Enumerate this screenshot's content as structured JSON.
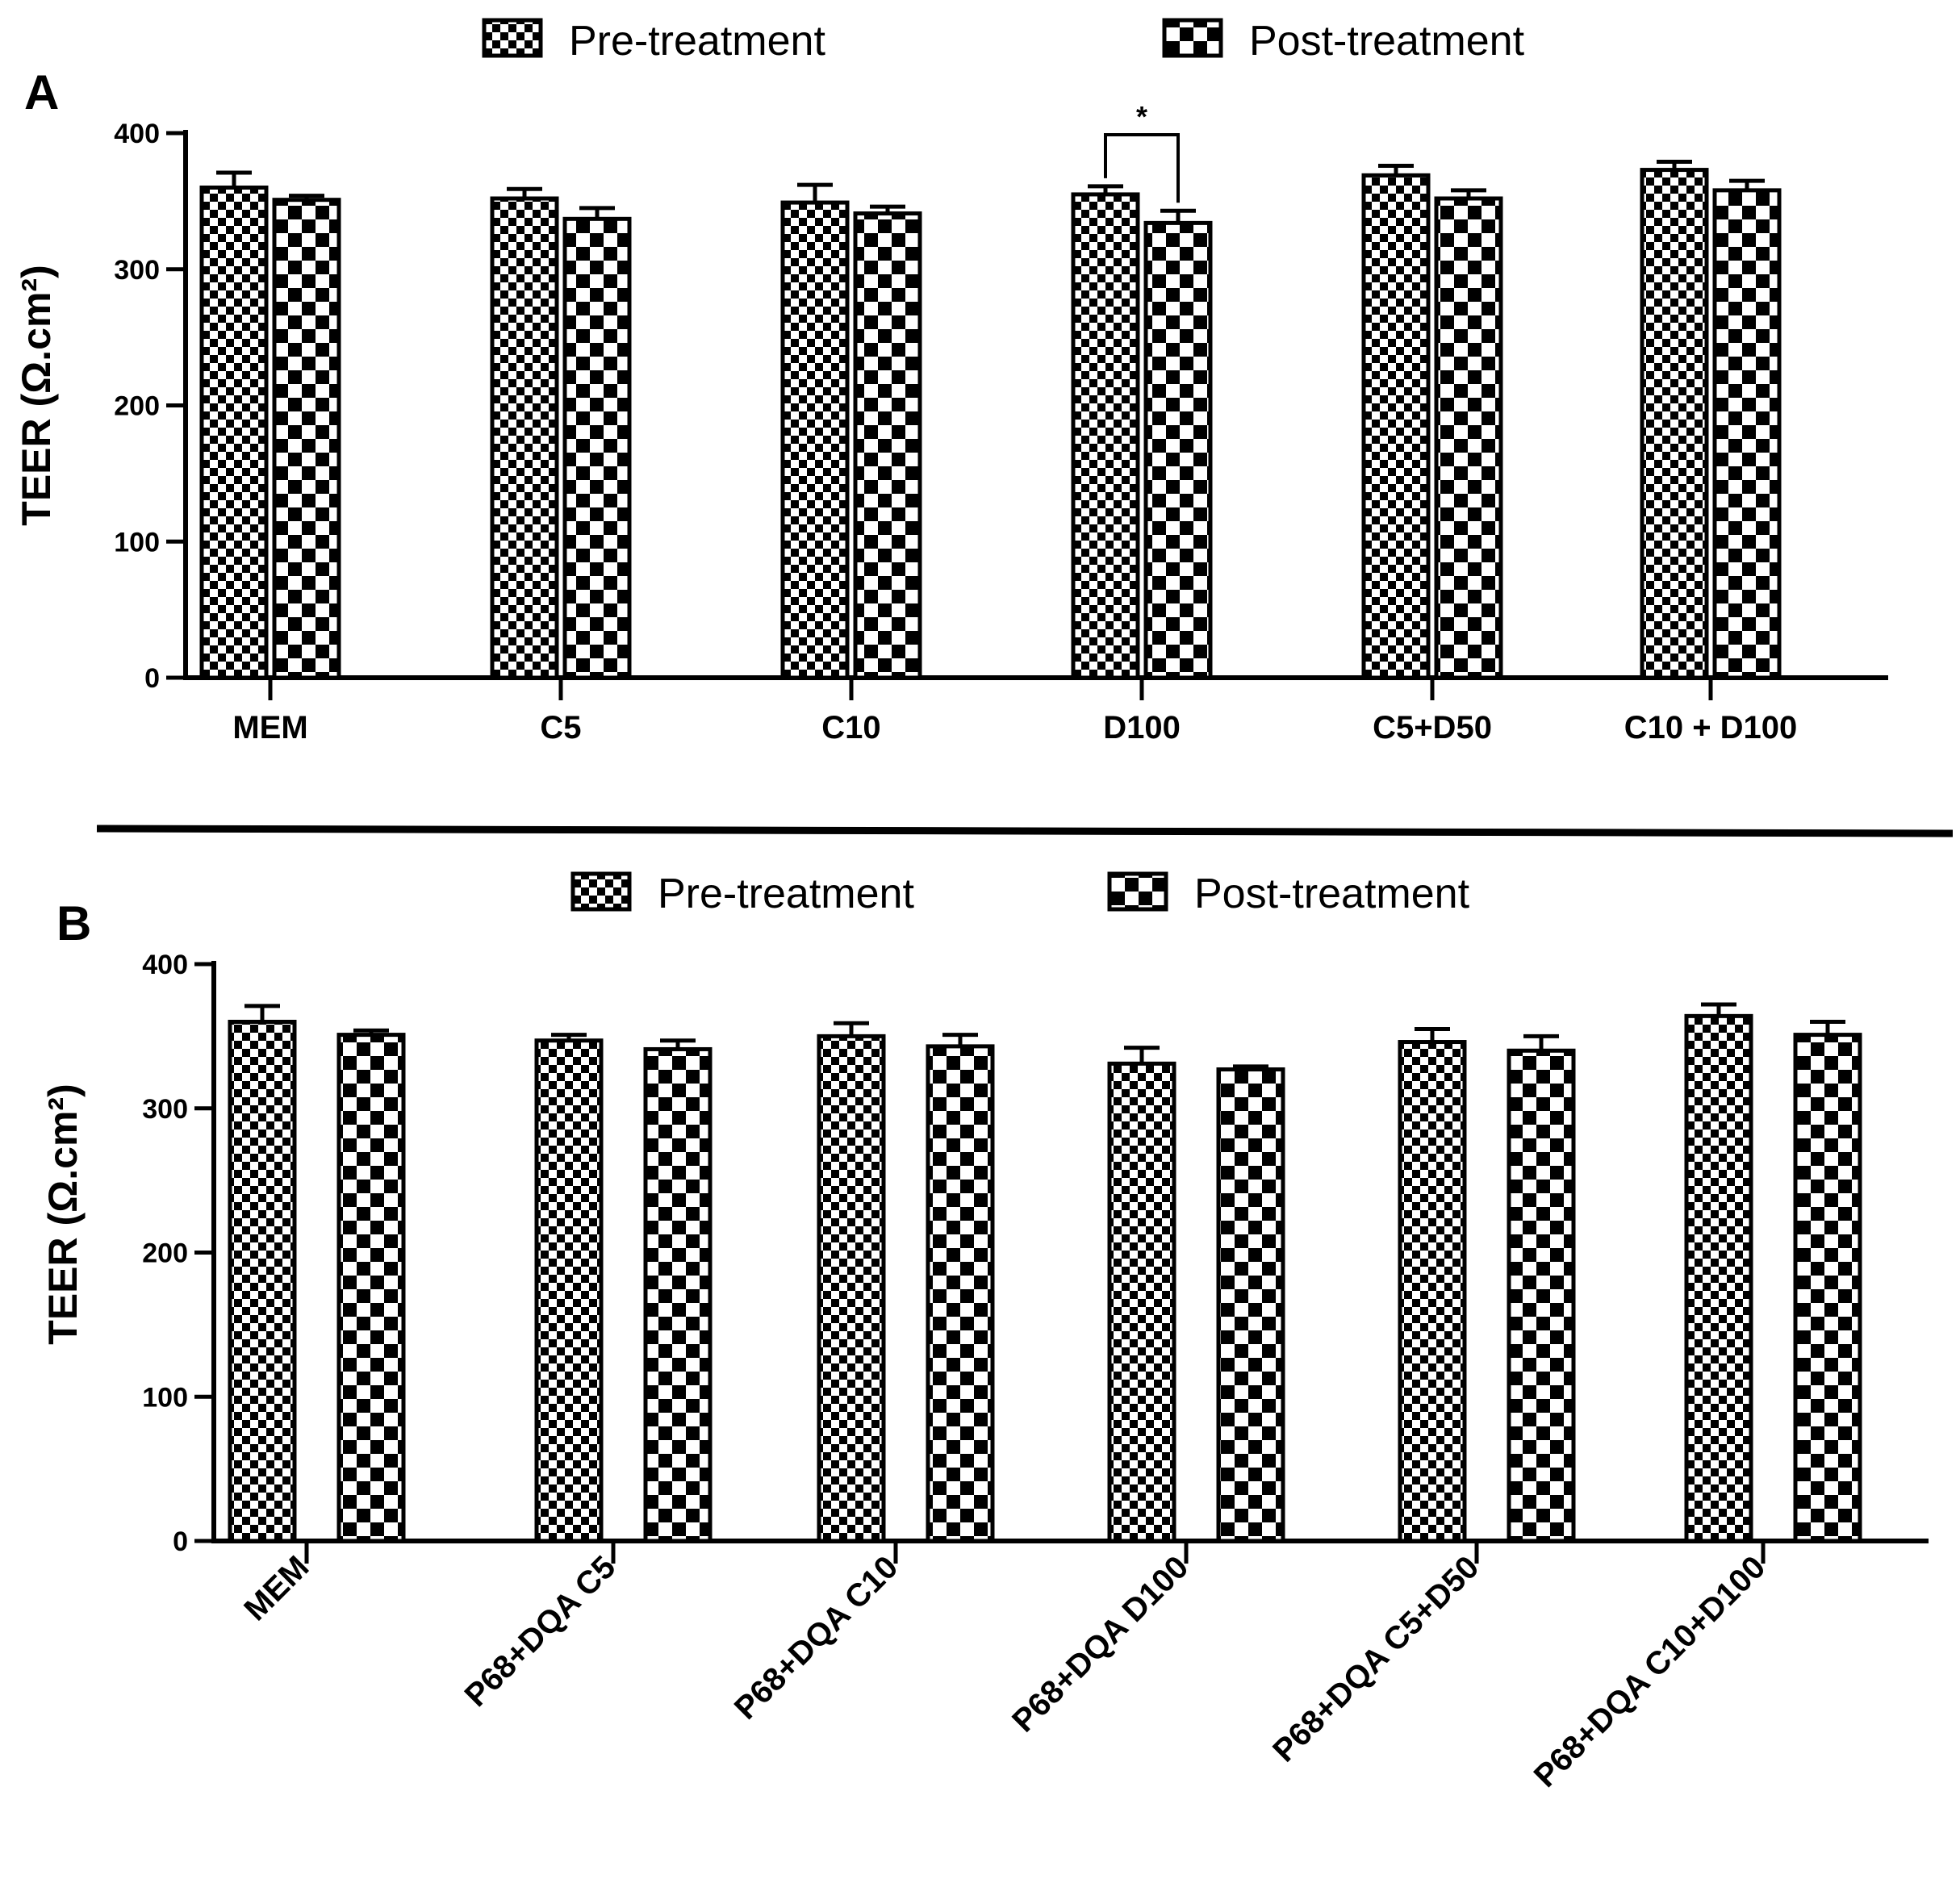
{
  "colors": {
    "ink": "#000000",
    "paper": "#ffffff"
  },
  "chart_data": [
    {
      "type": "bar",
      "panel_label": "A",
      "ylabel": "TEER (Ω.cm²)",
      "ylim": [
        0,
        400
      ],
      "yticks": [
        "0",
        "100",
        "200",
        "300",
        "400"
      ],
      "legend": [
        "Pre-treatment",
        "Post-treatment"
      ],
      "categories": [
        "MEM",
        "C5",
        "C10",
        "D100",
        "C5+D50",
        "C10 + D100"
      ],
      "series": [
        {
          "name": "Pre-treatment",
          "values": [
            360,
            352,
            349,
            355,
            369,
            373
          ],
          "errors": [
            11,
            7,
            13,
            6,
            7,
            6
          ]
        },
        {
          "name": "Post-treatment",
          "values": [
            351,
            337,
            341,
            334,
            352,
            358
          ],
          "errors": [
            3,
            8,
            5,
            9,
            6,
            7
          ]
        }
      ],
      "annotations": [
        {
          "text": "*",
          "category": "D100"
        }
      ]
    },
    {
      "type": "bar",
      "panel_label": "B",
      "ylabel": "TEER (Ω.cm²)",
      "ylim": [
        0,
        400
      ],
      "yticks": [
        "0",
        "100",
        "200",
        "300",
        "400"
      ],
      "legend": [
        "Pre-treatment",
        "Post-treatment"
      ],
      "categories": [
        "MEM",
        "P68+DQA C5",
        "P68+DQA C10",
        "P68+DQA D100",
        "P68+DQA C5+D50",
        "P68+DQA C10+D100"
      ],
      "series": [
        {
          "name": "Pre-treatment",
          "values": [
            360,
            347,
            350,
            331,
            346,
            364
          ],
          "errors": [
            11,
            4,
            9,
            11,
            9,
            8
          ]
        },
        {
          "name": "Post-treatment",
          "values": [
            351,
            341,
            343,
            327,
            340,
            351
          ],
          "errors": [
            3,
            6,
            8,
            2,
            10,
            9
          ]
        }
      ]
    }
  ]
}
